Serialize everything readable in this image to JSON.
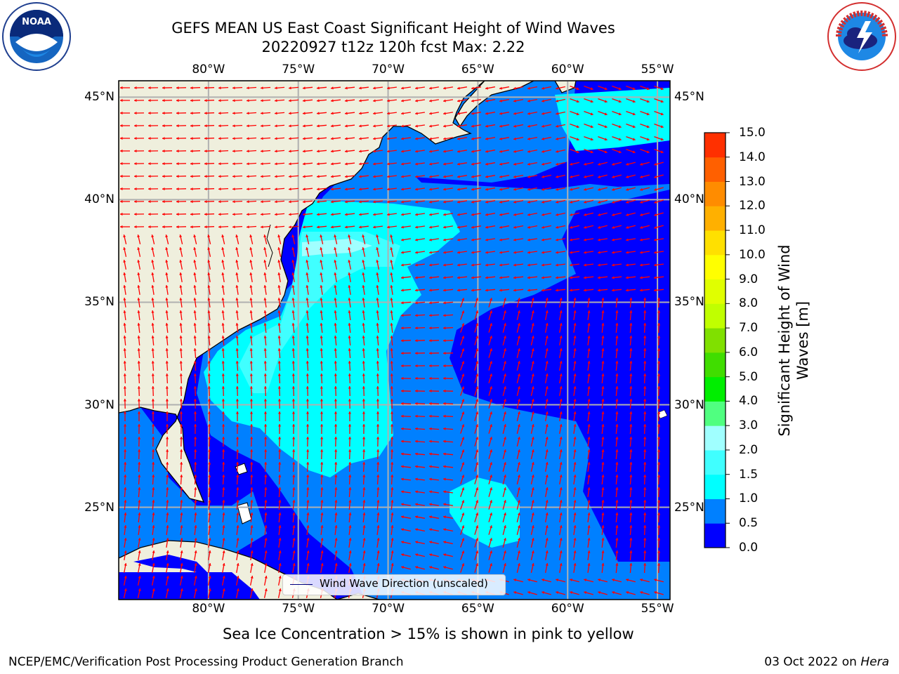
{
  "title_line1": "GEFS MEAN US East Coast Significant Height of Wind Waves",
  "title_line2": "20220927 t12z 120h fcst   Max: 2.22",
  "logos": {
    "left": {
      "name": "noaa-logo",
      "text": "NOAA",
      "ring_text": "NATIONAL OCEANIC AND ATMOSPHERIC ADMINISTRATION · U.S. DEPARTMENT OF COMMERCE"
    },
    "right": {
      "name": "nws-logo",
      "ring_text": "NATIONAL WEATHER SERVICE"
    }
  },
  "map": {
    "lon_labels": [
      "80°W",
      "75°W",
      "70°W",
      "65°W",
      "60°W",
      "55°W"
    ],
    "lon_values": [
      -80,
      -75,
      -70,
      -65,
      -60,
      -55
    ],
    "lat_labels": [
      "45°N",
      "40°N",
      "35°N",
      "30°N",
      "25°N"
    ],
    "lat_values": [
      45,
      40,
      35,
      30,
      25
    ],
    "extent": {
      "lon": [
        -85,
        -54.3
      ],
      "lat": [
        20.5,
        45.8
      ]
    },
    "colors": {
      "land": "#efefdd",
      "grid": "#b0b0b0",
      "arrow": "#ff0000",
      "coast": "#000000"
    },
    "legend_label": "Wind Wave Direction (unscaled)"
  },
  "colorbar": {
    "label": "Significant Height of Wind Waves [m]",
    "ticks": [
      "0.0",
      "0.5",
      "1.0",
      "1.5",
      "2.0",
      "3.0",
      "4.0",
      "5.0",
      "6.0",
      "7.0",
      "8.0",
      "9.0",
      "10.0",
      "11.0",
      "12.0",
      "13.0",
      "14.0",
      "15.0"
    ],
    "levels": [
      0,
      0.5,
      1,
      1.5,
      2,
      3,
      4,
      5,
      6,
      7,
      8,
      9,
      10,
      11,
      12,
      13,
      14,
      15
    ],
    "colors": [
      "#0000ff",
      "#0080ff",
      "#00ffff",
      "#40ffff",
      "#a0ffff",
      "#50ff80",
      "#00ee00",
      "#40dd00",
      "#80e000",
      "#c0ff00",
      "#e0ff00",
      "#ffff00",
      "#ffe000",
      "#ffb000",
      "#ff8c00",
      "#ff6000",
      "#ff3000",
      "#ff0000"
    ]
  },
  "subtitle": "Sea Ice Concentration > 15% is shown in pink to yellow",
  "footer_left": "NCEP/EMC/Verification Post Processing Product Generation Branch",
  "footer_right_date": "03 Oct 2022 on",
  "footer_right_host": "Hera"
}
